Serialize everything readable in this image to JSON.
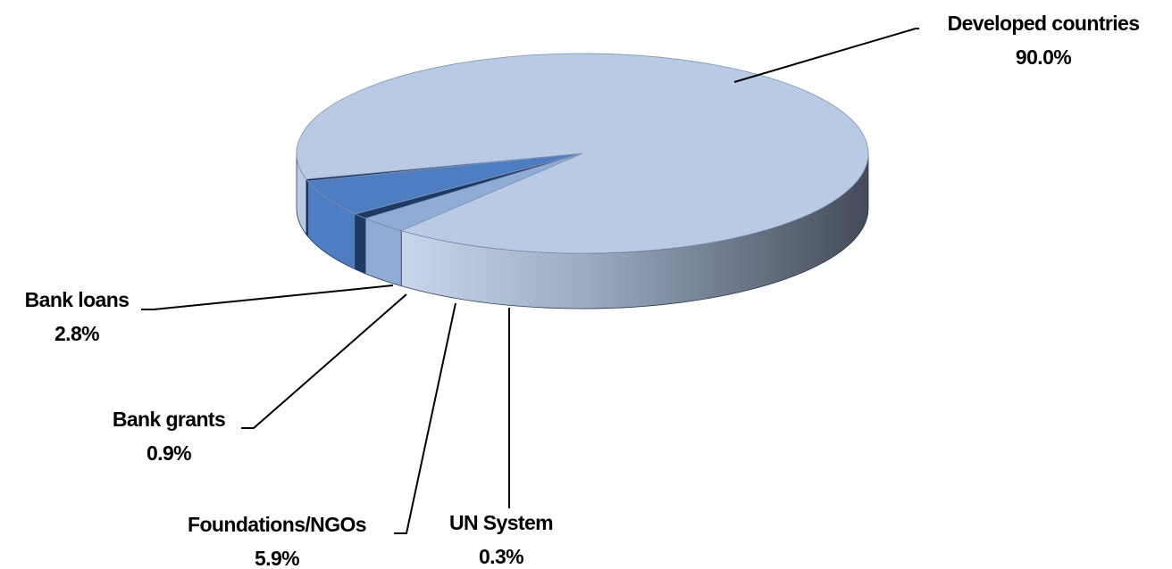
{
  "chart_data": {
    "type": "pie",
    "style": "3d",
    "slices": [
      {
        "name": "Developed countries",
        "value": 90.0,
        "label": "90.0%",
        "color": "#b9cae4"
      },
      {
        "name": "Bank loans",
        "value": 2.8,
        "label": "2.8%",
        "color": "#8eacd6"
      },
      {
        "name": "Bank grants",
        "value": 0.9,
        "label": "0.9%",
        "color": "#1d3a66"
      },
      {
        "name": "Foundations/NGOs",
        "value": 5.9,
        "label": "5.9%",
        "color": "#4f7dc2"
      },
      {
        "name": "UN System",
        "value": 0.3,
        "label": "0.3%",
        "color": "#0b2456"
      }
    ],
    "title": "",
    "legend": "none"
  }
}
